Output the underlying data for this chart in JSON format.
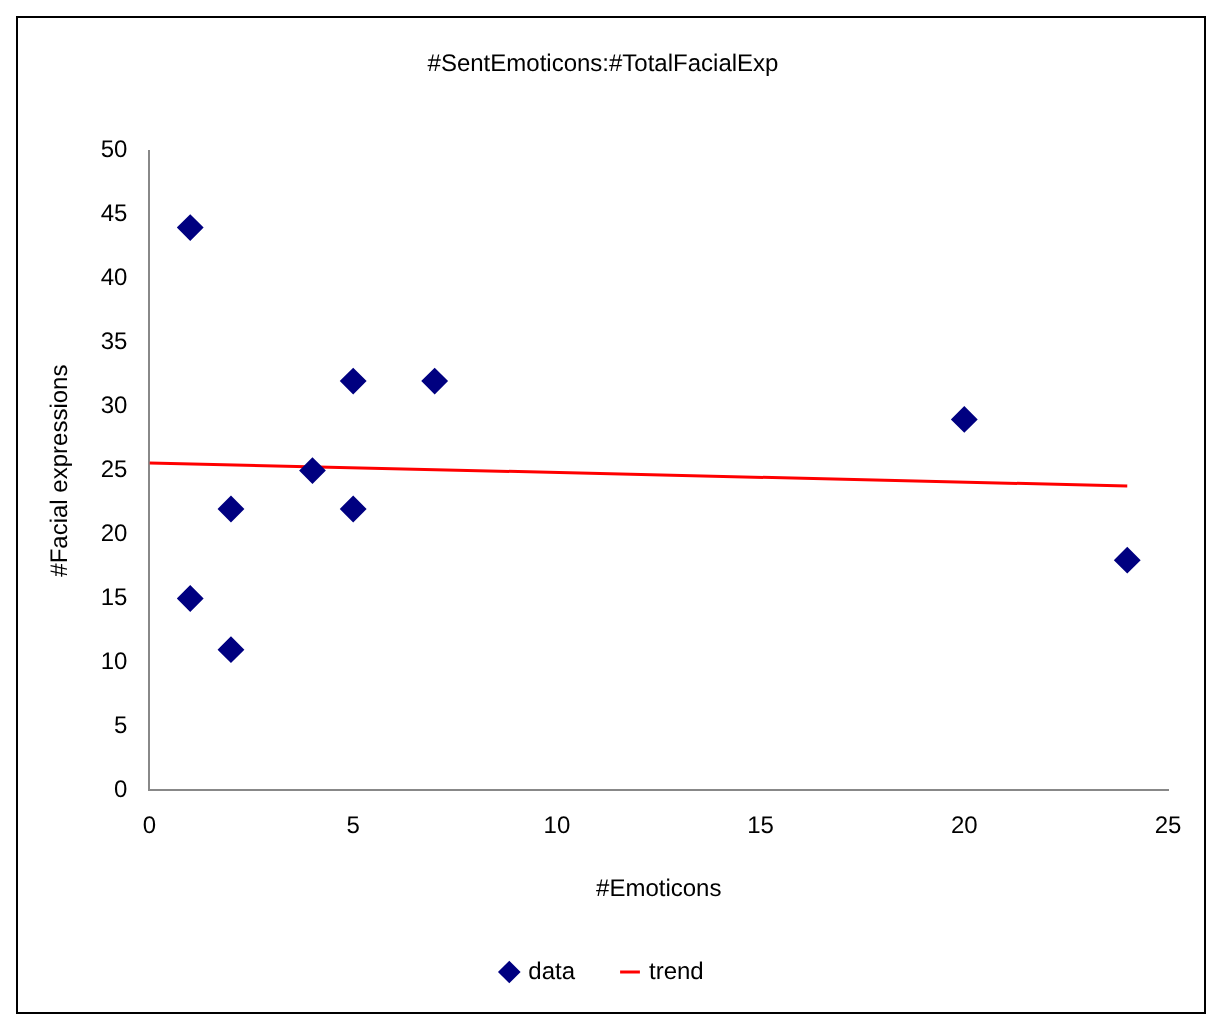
{
  "chart_data": {
    "type": "scatter",
    "title": "#SentEmoticons:#TotalFacialExp",
    "xlabel": "#Emoticons",
    "ylabel": "#Facial expressions",
    "series": [
      {
        "name": "data",
        "type": "scatter",
        "color": "#000080",
        "marker": "diamond",
        "x": [
          1,
          1,
          2,
          2,
          4,
          5,
          5,
          7,
          20,
          24
        ],
        "values": [
          44,
          15,
          22,
          11,
          25,
          32,
          22,
          32,
          29,
          18
        ]
      },
      {
        "name": "trend",
        "type": "line",
        "color": "#ff0000",
        "marker": "none",
        "line_style": "solid",
        "x": [
          0,
          24
        ],
        "values": [
          25.6,
          23.8
        ]
      }
    ],
    "xlim": [
      0,
      25
    ],
    "xticks": [
      0,
      5,
      10,
      15,
      20,
      25
    ],
    "ylim": [
      0,
      50
    ],
    "yticks": [
      0,
      5,
      10,
      15,
      20,
      25,
      30,
      35,
      40,
      45,
      50
    ],
    "grid": false,
    "legend": "bottom"
  }
}
